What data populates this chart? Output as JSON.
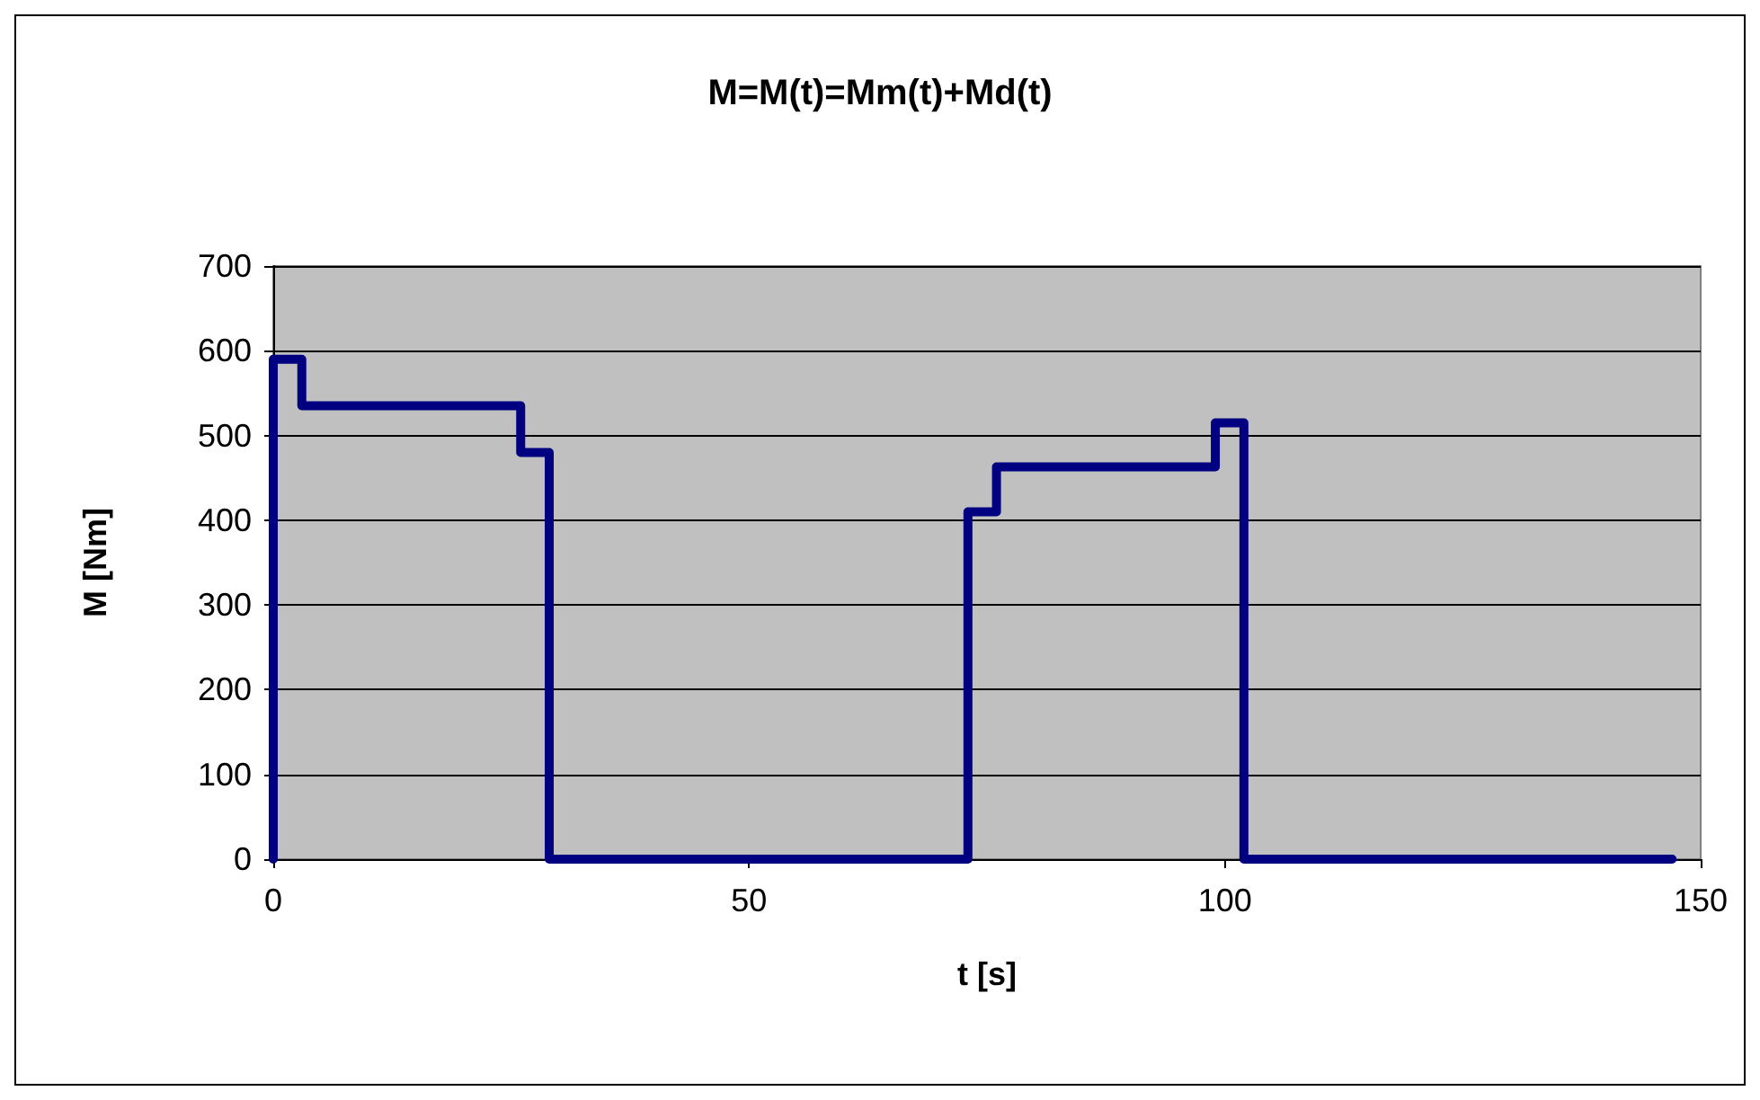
{
  "chart_data": {
    "type": "step",
    "title": "M=M(t)=Mm(t)+Md(t)",
    "xlabel": "t [s]",
    "ylabel": "M [Nm]",
    "x": [
      0,
      0,
      3,
      26,
      29,
      73,
      76,
      99,
      102,
      147
    ],
    "series": [
      {
        "color": "#000080",
        "values": [
          0,
          590,
          535,
          480,
          0,
          410,
          463,
          515,
          0,
          0
        ]
      }
    ],
    "xlim": [
      0,
      150
    ],
    "xticks": [
      0,
      50,
      100,
      150
    ],
    "ylim": [
      0,
      700
    ],
    "yticks": [
      0,
      100,
      200,
      300,
      400,
      500,
      600,
      700
    ],
    "grid": "y",
    "marker": "none",
    "line_style": "solid"
  }
}
